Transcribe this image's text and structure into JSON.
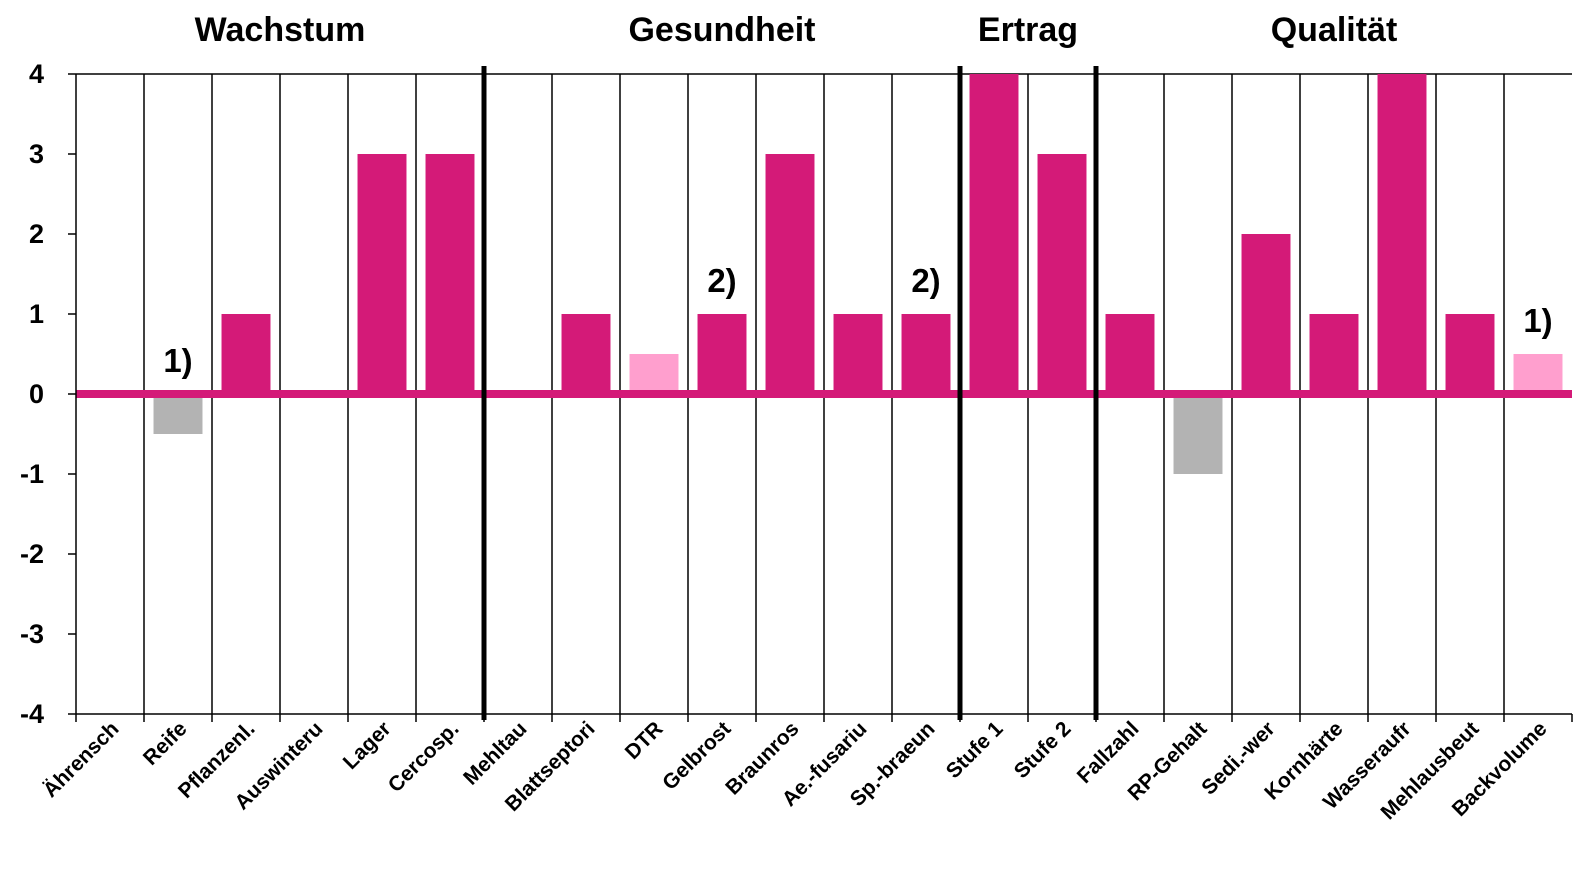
{
  "chart_data": {
    "type": "bar",
    "groups": [
      {
        "title": "Wachstum",
        "start": 0,
        "end": 6
      },
      {
        "title": "Gesundheit",
        "start": 6,
        "end": 13
      },
      {
        "title": "Ertrag",
        "start": 13,
        "end": 15
      },
      {
        "title": "Qualität",
        "start": 15,
        "end": 22
      }
    ],
    "categories": [
      "Ährensch",
      "Reife",
      "Pflanzenl.",
      "Auswinteru",
      "Lager",
      "Cercosp.",
      "Mehltau",
      "Blattseptori",
      "DTR",
      "Gelbrost",
      "Braunros",
      "Ae.-fusariu",
      "Sp.-braeun",
      "Stufe 1",
      "Stufe 2",
      "Fallzahl",
      "RP-Gehalt",
      "Sedi.-wer",
      "Kornhärte",
      "Wasseraufr",
      "Mehlausbeut",
      "Backvolume"
    ],
    "values": [
      0,
      -0.5,
      1,
      0,
      3,
      3,
      0,
      1,
      0.5,
      1,
      3,
      1,
      1,
      4,
      3,
      1,
      -1,
      2,
      1,
      4,
      1,
      0.5
    ],
    "bar_kind": [
      "none",
      "negative",
      "positive",
      "none",
      "positive",
      "positive",
      "none",
      "positive",
      "light",
      "positive",
      "positive",
      "positive",
      "positive",
      "positive",
      "positive",
      "positive",
      "negative",
      "positive",
      "positive",
      "positive",
      "positive",
      "light"
    ],
    "annotations": [
      {
        "category_index": 1,
        "text": "1)"
      },
      {
        "category_index": 9,
        "text": "2)"
      },
      {
        "category_index": 12,
        "text": "2)"
      },
      {
        "category_index": 21,
        "text": "1)"
      }
    ],
    "yticks": [
      4,
      3,
      2,
      1,
      0,
      -1,
      -2,
      -3,
      -4
    ],
    "ylim": [
      -4,
      4
    ],
    "grid": "vertical lines between categories",
    "legend": "none",
    "colors": {
      "positive": "#d41a78",
      "light": "#ff9fce",
      "negative": "#b3b3b3",
      "zero_line": "#d41a78",
      "group_divider": "#000000",
      "grid": "#000000"
    }
  }
}
